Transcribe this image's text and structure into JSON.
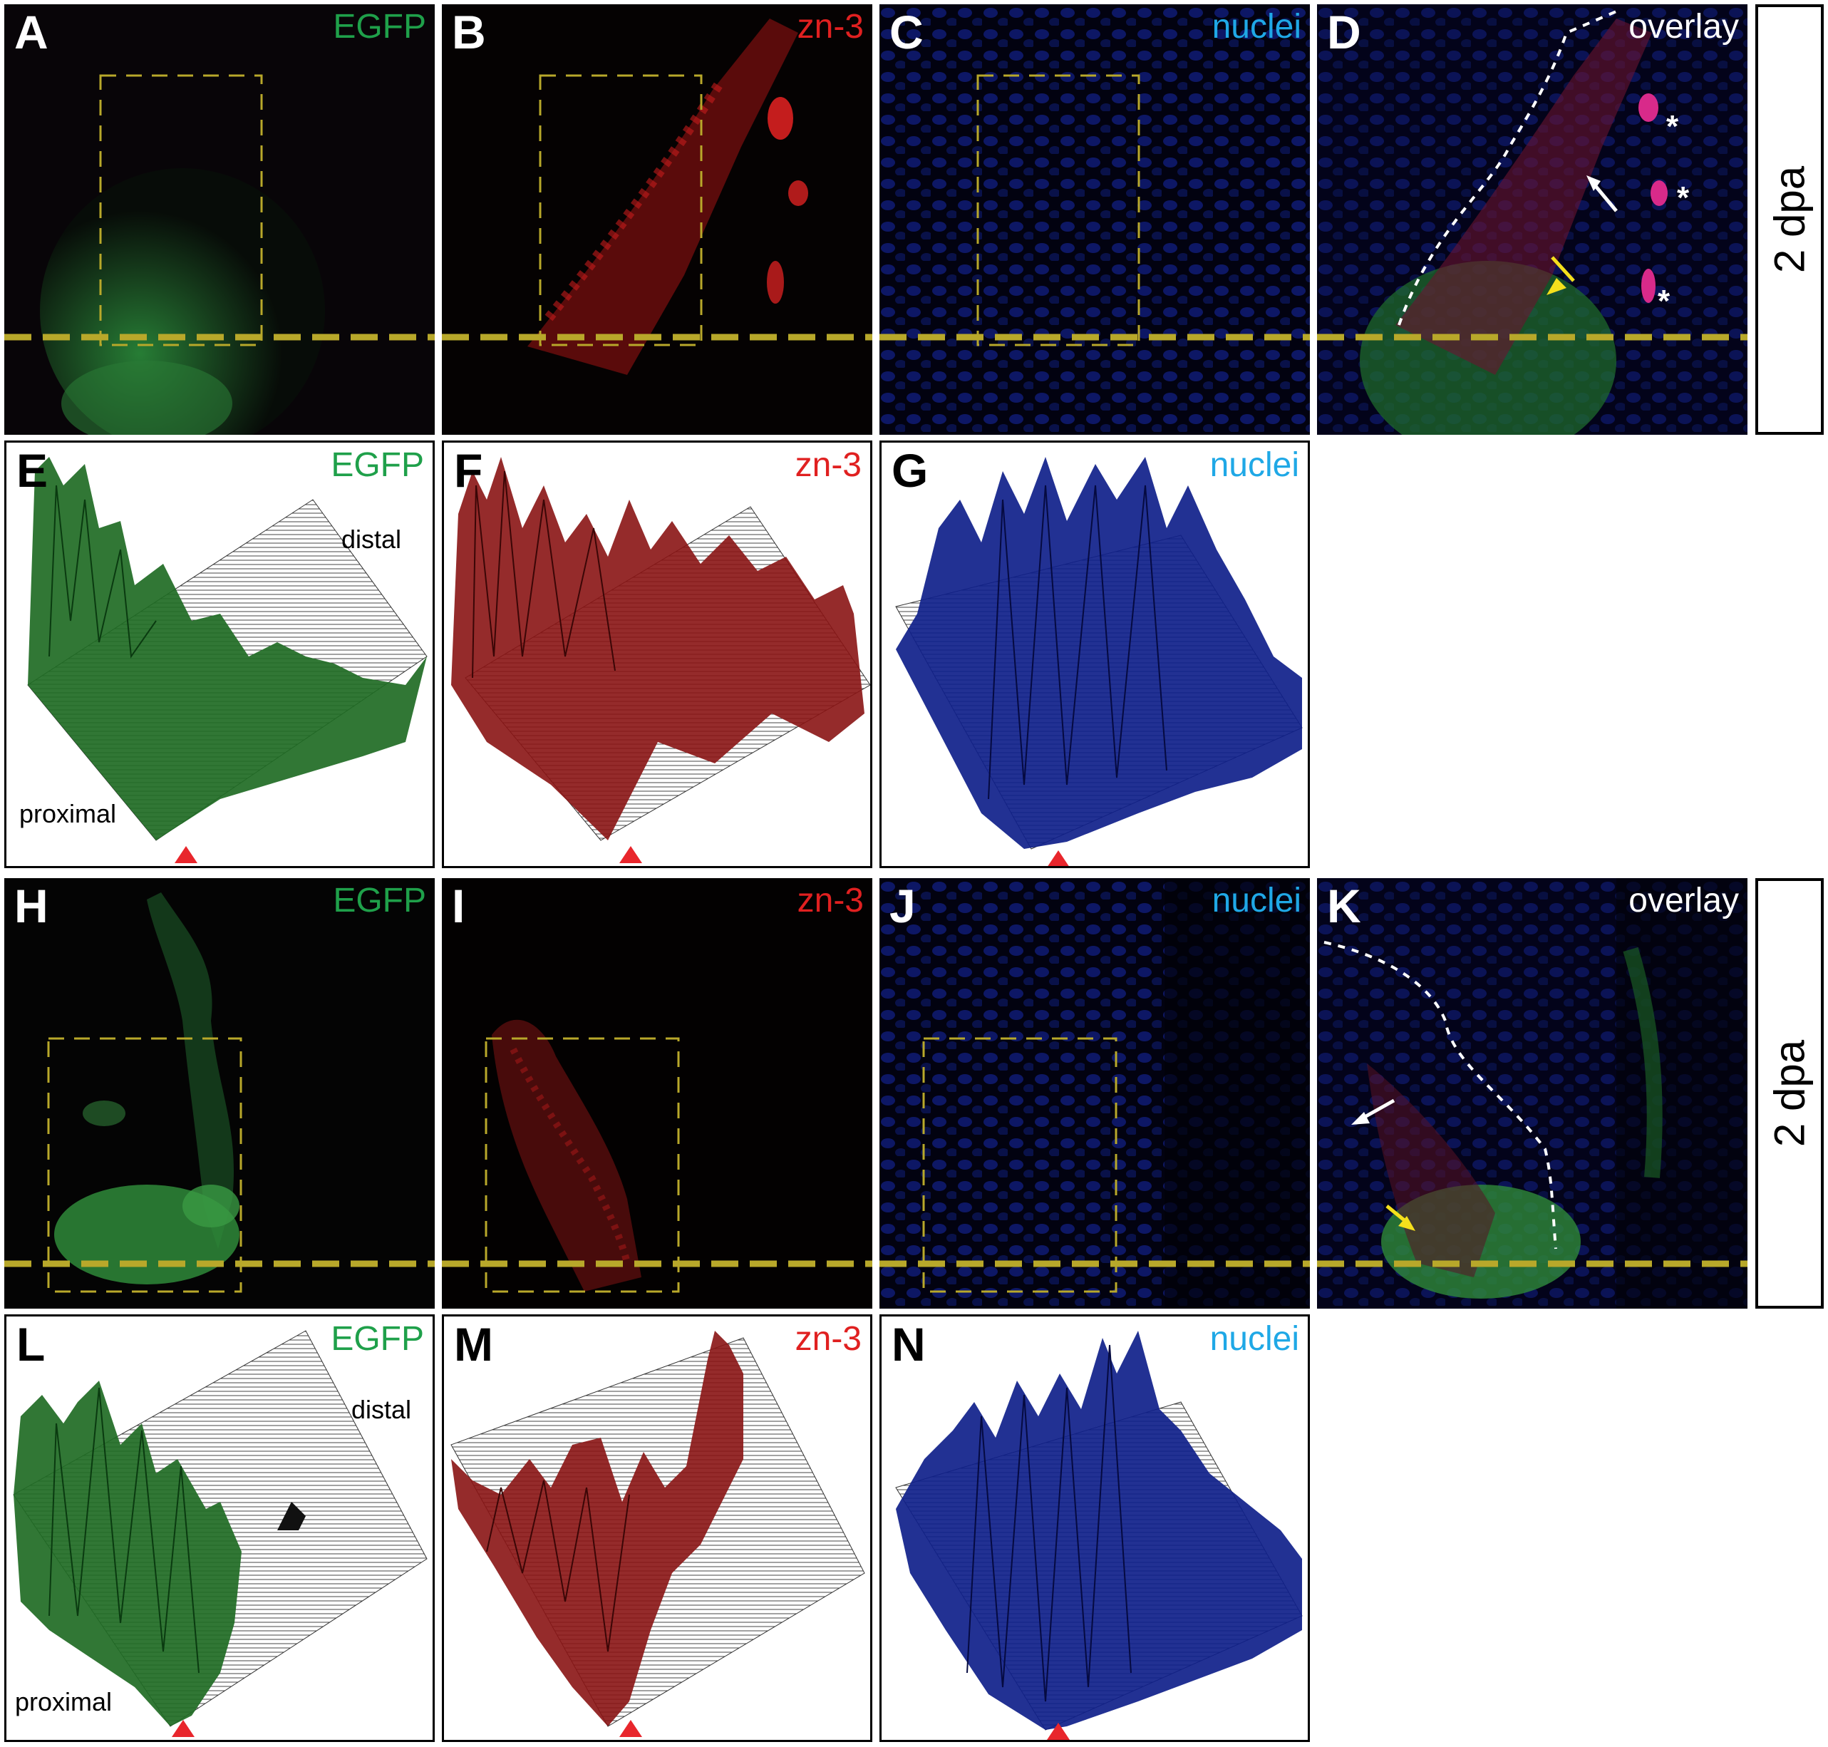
{
  "figure": {
    "panels": {
      "A": {
        "letter": "A",
        "channel": "EGFP"
      },
      "B": {
        "letter": "B",
        "channel": "zn-3"
      },
      "C": {
        "letter": "C",
        "channel": "nuclei"
      },
      "D": {
        "letter": "D",
        "channel": "overlay"
      },
      "E": {
        "letter": "E",
        "channel": "EGFP",
        "distal": "distal",
        "proximal": "proximal"
      },
      "F": {
        "letter": "F",
        "channel": "zn-3"
      },
      "G": {
        "letter": "G",
        "channel": "nuclei"
      },
      "H": {
        "letter": "H",
        "channel": "EGFP"
      },
      "I": {
        "letter": "I",
        "channel": "zn-3"
      },
      "J": {
        "letter": "J",
        "channel": "nuclei"
      },
      "K": {
        "letter": "K",
        "channel": "overlay"
      },
      "L": {
        "letter": "L",
        "channel": "EGFP",
        "distal": "distal",
        "proximal": "proximal"
      },
      "M": {
        "letter": "M",
        "channel": "zn-3"
      },
      "N": {
        "letter": "N",
        "channel": "nuclei"
      }
    },
    "row_labels": {
      "top": "2 dpa",
      "bottom": "2 dpa"
    },
    "asterisk": "*",
    "colors": {
      "egfp": "#1fa04a",
      "zn3": "#e02020",
      "nuclei": "#1fa8e6",
      "guide_line": "#b8a82a",
      "arrowhead": "#e8262c",
      "arrow_white": "#ffffff",
      "arrow_yellow": "#f4e01c"
    }
  }
}
